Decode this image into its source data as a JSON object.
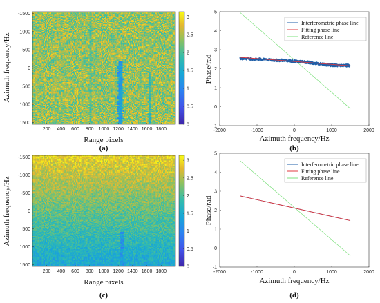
{
  "colors": {
    "interferometric": "#1f5fa8",
    "fitting": "#e0393f",
    "reference": "#7ee07e",
    "colormap_low": "#3b1e8c",
    "colormap_high": "#f5e51e"
  },
  "chart_data": [
    {
      "panel": "a",
      "type": "heatmap",
      "caption": "(a)",
      "xlabel": "Range pixels",
      "ylabel": "Azimuth frequency/Hz",
      "x_ticks": [
        "200",
        "400",
        "600",
        "800",
        "1000",
        "1200",
        "1400",
        "1600",
        "1800"
      ],
      "y_ticks": [
        "-1500",
        "-1000",
        "-500",
        "0",
        "500",
        "1000",
        "1500"
      ],
      "xlim": [
        1,
        2000
      ],
      "ylim": [
        -1550,
        1550
      ],
      "y_reversed": true,
      "colorbar_ticks": [
        "0",
        "0.5",
        "1",
        "1.5",
        "2",
        "2.5",
        "3"
      ],
      "clim": [
        0,
        3.14
      ],
      "base_value": 2.4,
      "noise": 0.55,
      "features": [
        {
          "x_center": 1230,
          "x_halfwidth": 22,
          "y_from": -200,
          "value": 1.3
        },
        {
          "x_center": 1640,
          "x_halfwidth": 10,
          "y_from": 100,
          "value": 1.8
        },
        {
          "x_center": 810,
          "x_halfwidth": 8,
          "y_from": -1550,
          "value": 2.1
        }
      ]
    },
    {
      "panel": "b",
      "type": "line",
      "caption": "(b)",
      "xlabel": "Azimuth frequency/Hz",
      "ylabel": "Phase/rad",
      "xlim": [
        -2000,
        2000
      ],
      "ylim": [
        -1,
        5
      ],
      "x_ticks": [
        "-2000",
        "-1000",
        "0",
        "1000",
        "2000"
      ],
      "y_ticks": [
        "-1",
        "0",
        "1",
        "2",
        "3",
        "4",
        "5"
      ],
      "legend": [
        "Interferometric phase line",
        "Fitting phase line",
        "Reference line"
      ],
      "legend_position": "top-right",
      "series": [
        {
          "name": "Interferometric phase line",
          "x": [
            -1450,
            -1000,
            -500,
            0,
            300,
            600,
            900,
            1200,
            1500
          ],
          "y": [
            2.55,
            2.5,
            2.45,
            2.4,
            2.35,
            2.28,
            2.2,
            2.16,
            2.17
          ],
          "noisy": true
        },
        {
          "name": "Fitting phase line",
          "x": [
            -1450,
            1500
          ],
          "y": [
            2.6,
            2.15
          ]
        },
        {
          "name": "Reference line",
          "x": [
            -1450,
            1500
          ],
          "y": [
            4.95,
            -0.1
          ]
        }
      ]
    },
    {
      "panel": "c",
      "type": "heatmap",
      "caption": "(c)",
      "xlabel": "Range pixels",
      "ylabel": "Azimuth frequency/Hz",
      "x_ticks": [
        "200",
        "400",
        "600",
        "800",
        "1000",
        "1200",
        "1400",
        "1600",
        "1800"
      ],
      "y_ticks": [
        "-1500",
        "-1000",
        "-500",
        "0",
        "500",
        "1000",
        "1500"
      ],
      "xlim": [
        1,
        2000
      ],
      "ylim": [
        -1550,
        1550
      ],
      "y_reversed": true,
      "colorbar_ticks": [
        "0",
        "0.5",
        "1",
        "1.5",
        "2",
        "2.5",
        "3"
      ],
      "clim": [
        0,
        3.14
      ],
      "gradient": {
        "top_value": 2.85,
        "bottom_value": 1.45
      },
      "noise": 0.35,
      "features": [
        {
          "x_center": 1250,
          "x_halfwidth": 18,
          "y_from": 600,
          "value": 1.2
        }
      ]
    },
    {
      "panel": "d",
      "type": "line",
      "caption": "(d)",
      "xlabel": "Azimuth frequency/Hz",
      "ylabel": "Phase/rad",
      "xlim": [
        -2000,
        2000
      ],
      "ylim": [
        -1,
        5
      ],
      "x_ticks": [
        "-2000",
        "-1000",
        "0",
        "1000",
        "2000"
      ],
      "y_ticks": [
        "-1",
        "0",
        "1",
        "2",
        "3",
        "4",
        "5"
      ],
      "legend": [
        "Interferometric phase line",
        "Fitting phase line",
        "Reference line"
      ],
      "legend_position": "top-right",
      "series": [
        {
          "name": "Interferometric phase line",
          "x": [
            -1450,
            1500
          ],
          "y": [
            2.75,
            1.45
          ]
        },
        {
          "name": "Fitting phase line",
          "x": [
            -1450,
            1500
          ],
          "y": [
            2.75,
            1.45
          ]
        },
        {
          "name": "Reference line",
          "x": [
            -1450,
            1500
          ],
          "y": [
            4.6,
            -0.4
          ]
        }
      ]
    }
  ]
}
